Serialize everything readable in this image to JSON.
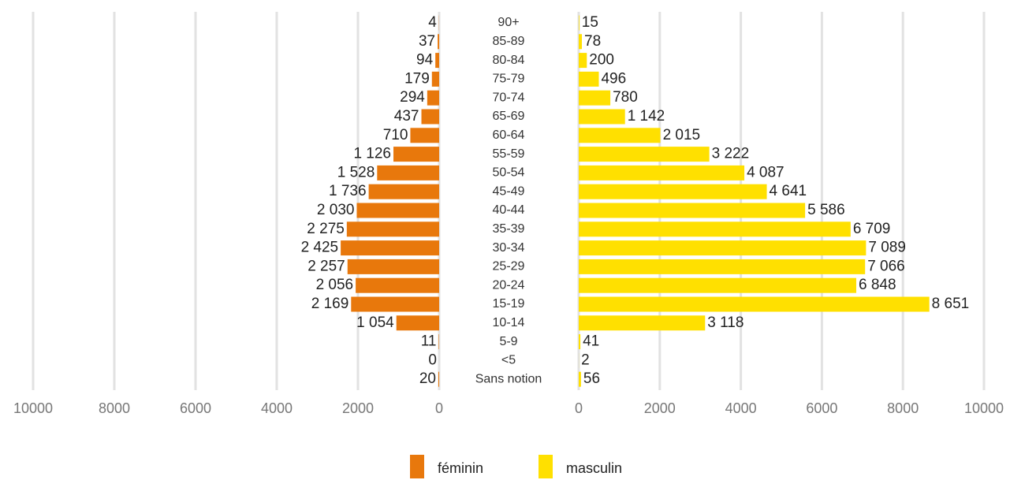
{
  "chart_data": {
    "type": "pyramid",
    "categories": [
      "90+",
      "85-89",
      "80-84",
      "75-79",
      "70-74",
      "65-69",
      "60-64",
      "55-59",
      "50-54",
      "45-49",
      "40-44",
      "35-39",
      "30-34",
      "25-29",
      "20-24",
      "15-19",
      "10-14",
      "5-9",
      "<5",
      "Sans notion"
    ],
    "series": [
      {
        "name": "féminin",
        "color": "#e8780c",
        "values": [
          4,
          37,
          94,
          179,
          294,
          437,
          710,
          1126,
          1528,
          1736,
          2030,
          2275,
          2425,
          2257,
          2056,
          2169,
          1054,
          11,
          0,
          20
        ],
        "value_labels": [
          "4",
          "37",
          "94",
          "179",
          "294",
          "437",
          "710",
          "1 126",
          "1 528",
          "1 736",
          "2 030",
          "2 275",
          "2 425",
          "2 257",
          "2 056",
          "2 169",
          "1 054",
          "11",
          "0",
          "20"
        ]
      },
      {
        "name": "masculin",
        "color": "#ffe000",
        "values": [
          15,
          78,
          200,
          496,
          780,
          1142,
          2015,
          3222,
          4087,
          4641,
          5586,
          6709,
          7089,
          7066,
          6848,
          8651,
          3118,
          41,
          2,
          56
        ],
        "value_labels": [
          "15",
          "78",
          "200",
          "496",
          "780",
          "1 142",
          "2 015",
          "3 222",
          "4 087",
          "4 641",
          "5 586",
          "6 709",
          "7 089",
          "7 066",
          "6 848",
          "8 651",
          "3 118",
          "41",
          "2",
          "56"
        ]
      }
    ],
    "xlim": [
      0,
      10000
    ],
    "xticks": [
      0,
      2000,
      4000,
      6000,
      8000,
      10000
    ],
    "grid": true,
    "legend": "bottom"
  }
}
